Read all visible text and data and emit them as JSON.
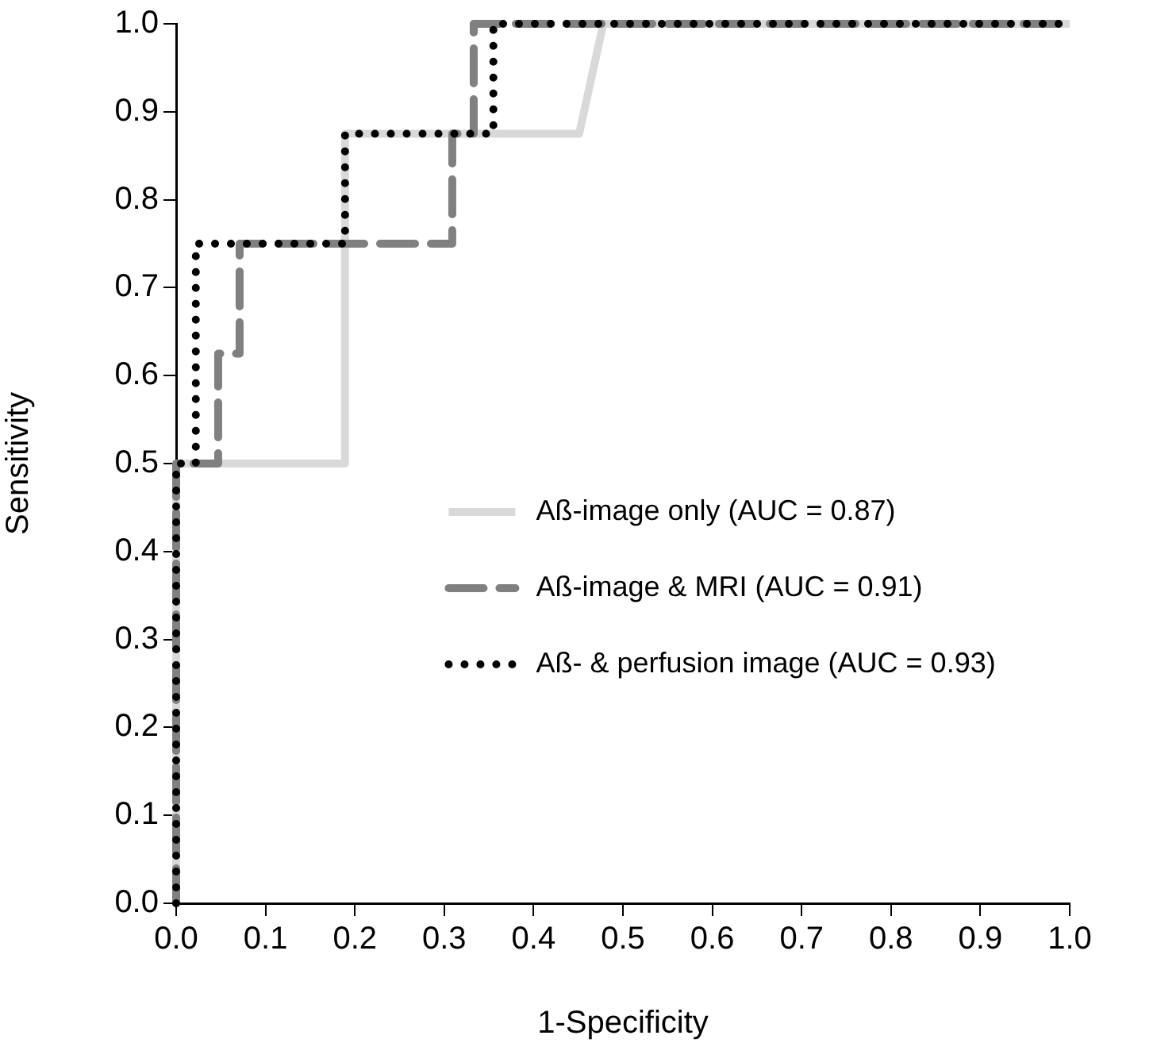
{
  "chart_data": {
    "type": "line",
    "xlabel": "1-Specificity",
    "ylabel": "Sensitivity",
    "xlim": [
      0,
      1
    ],
    "ylim": [
      0,
      1
    ],
    "xticks": [
      {
        "value": 0,
        "label": "0.0"
      },
      {
        "value": 0.1,
        "label": "0.1"
      },
      {
        "value": 0.2,
        "label": "0.2"
      },
      {
        "value": 0.3,
        "label": "0.3"
      },
      {
        "value": 0.4,
        "label": "0.4"
      },
      {
        "value": 0.5,
        "label": "0.5"
      },
      {
        "value": 0.6,
        "label": "0.6"
      },
      {
        "value": 0.7,
        "label": "0.7"
      },
      {
        "value": 0.8,
        "label": "0.8"
      },
      {
        "value": 0.9,
        "label": "0.9"
      },
      {
        "value": 1,
        "label": "1.0"
      }
    ],
    "yticks": [
      {
        "value": 0,
        "label": "0.0"
      },
      {
        "value": 0.1,
        "label": "0.1"
      },
      {
        "value": 0.2,
        "label": "0.2"
      },
      {
        "value": 0.3,
        "label": "0.3"
      },
      {
        "value": 0.4,
        "label": "0.4"
      },
      {
        "value": 0.5,
        "label": "0.5"
      },
      {
        "value": 0.6,
        "label": "0.6"
      },
      {
        "value": 0.7,
        "label": "0.7"
      },
      {
        "value": 0.8,
        "label": "0.8"
      },
      {
        "value": 0.9,
        "label": "0.9"
      },
      {
        "value": 1,
        "label": "1.0"
      }
    ],
    "grid": false,
    "legend": "right",
    "marker": "none",
    "series": [
      {
        "name": "Aß-image only (AUC = 0.87)",
        "color": "#d9d9d9",
        "line_style": "solid",
        "x": [
          0,
          0,
          0.189,
          0.189,
          0.451,
          0.478,
          1
        ],
        "values": [
          0,
          0.5,
          0.5,
          0.875,
          0.875,
          1,
          1
        ]
      },
      {
        "name": "Aß-image & MRI (AUC = 0.91)",
        "color": "#808080",
        "line_style": "dashed",
        "x": [
          0,
          0,
          0.047,
          0.047,
          0.071,
          0.071,
          0.309,
          0.309,
          0.333,
          0.333,
          1
        ],
        "values": [
          0,
          0.5,
          0.5,
          0.625,
          0.625,
          0.75,
          0.75,
          0.875,
          0.875,
          1,
          1
        ]
      },
      {
        "name": "Aß- & perfusion image (AUC = 0.93)",
        "color": "#000000",
        "line_style": "dotted",
        "x": [
          0,
          0,
          0.022,
          0.022,
          0.189,
          0.189,
          0.355,
          0.355,
          1
        ],
        "values": [
          0,
          0.5,
          0.5,
          0.75,
          0.75,
          0.875,
          0.875,
          1,
          1
        ]
      }
    ]
  }
}
